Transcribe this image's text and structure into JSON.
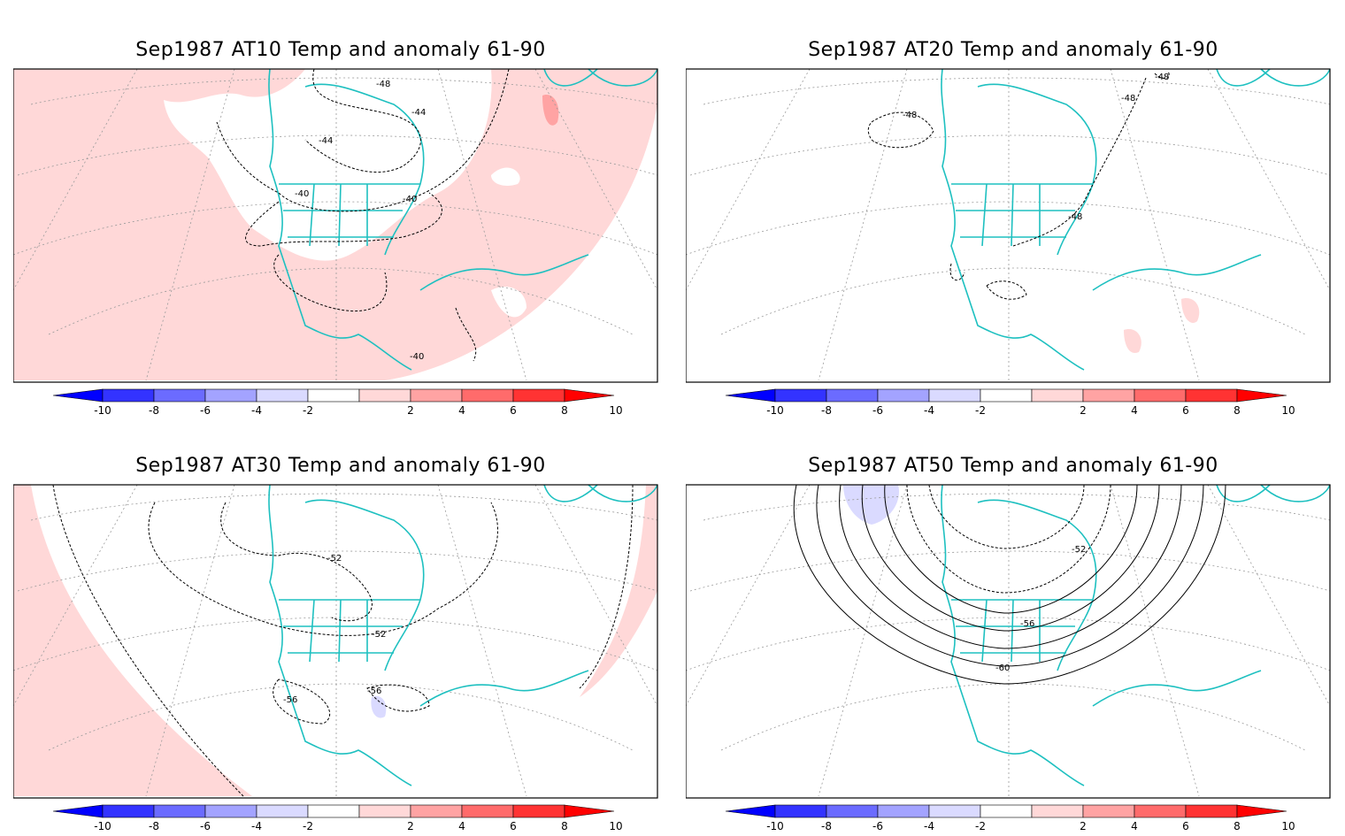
{
  "panels": [
    {
      "title": "Sep1987 AT10 Temp and anomaly 61-90",
      "contour_labels": [
        "-48",
        "-44",
        "-44",
        "-40",
        "-40",
        "-40"
      ],
      "anomaly_fill": "warm-wide"
    },
    {
      "title": "Sep1987 AT20 Temp and anomaly 61-90",
      "contour_labels": [
        "-48",
        "-48",
        "-48",
        "-48"
      ],
      "anomaly_fill": "sparse"
    },
    {
      "title": "Sep1987 AT30 Temp and anomaly 61-90",
      "contour_labels": [
        "-52",
        "-52",
        "-56",
        "-56"
      ],
      "anomaly_fill": "edges"
    },
    {
      "title": "Sep1987 AT50 Temp and anomaly 61-90",
      "contour_labels": [
        "-52",
        "-56",
        "-60"
      ],
      "anomaly_fill": "cold-spot"
    }
  ],
  "colorbar": {
    "tick_labels": [
      "-10",
      "-8",
      "-6",
      "-4",
      "-2",
      "2",
      "4",
      "6",
      "8",
      "10"
    ],
    "colors": [
      "#0000ff",
      "#3333ff",
      "#6b6bff",
      "#a3a3ff",
      "#dadaff",
      "#ffffff",
      "#ffd8d8",
      "#ffa3a3",
      "#ff6b6b",
      "#ff3333",
      "#ff0000"
    ]
  },
  "colors": {
    "coastline": "#1ec0c0",
    "warm_light": "#ffd8d8",
    "warm_mid": "#ffa3a3",
    "cold_light": "#dadaff",
    "contour": "#000000",
    "grid": "#9a9a9a"
  }
}
